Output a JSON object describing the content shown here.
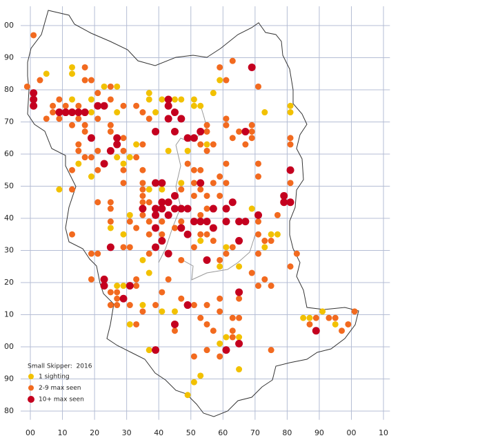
{
  "chart_data": {
    "type": "scatter",
    "title": "Small Skipper:  2016",
    "xlim": [
      -2,
      112
    ],
    "ylim": [
      79,
      206
    ],
    "xticks": [
      {
        "value": 0,
        "label": "00"
      },
      10,
      20,
      30,
      40,
      50,
      60,
      70,
      80,
      90,
      {
        "value": 100,
        "label": "00"
      },
      {
        "value": 110,
        "label": "10"
      }
    ],
    "yticks": [
      80,
      90,
      {
        "value": 100,
        "label": "00"
      },
      {
        "value": 110,
        "label": "10"
      },
      {
        "value": 120,
        "label": "20"
      },
      {
        "value": 130,
        "label": "30"
      },
      {
        "value": 140,
        "label": "40"
      },
      {
        "value": 150,
        "label": "50"
      },
      {
        "value": 160,
        "label": "60"
      },
      {
        "value": 170,
        "label": "70"
      },
      {
        "value": 180,
        "label": "80"
      },
      {
        "value": 190,
        "label": "90"
      },
      {
        "value": 200,
        "label": "00"
      }
    ],
    "grid": true,
    "legend": "lower left",
    "series": [
      {
        "name": "1 sighting",
        "color": "#f2c100",
        "x": [
          5,
          13,
          13,
          13,
          19,
          19,
          23,
          27,
          27,
          27,
          29,
          31,
          33,
          37,
          37,
          39,
          41,
          45,
          51,
          51,
          53,
          47,
          43,
          49,
          41,
          37,
          31,
          25,
          29,
          35,
          37,
          41,
          45,
          47,
          53,
          61,
          59,
          69,
          73,
          77,
          75,
          81,
          81,
          73,
          59,
          57,
          55,
          65,
          65,
          59,
          51,
          53,
          49,
          37,
          31,
          29,
          27,
          15,
          9,
          19,
          85,
          87,
          91,
          95,
          35,
          65,
          61
        ],
        "values": [
          185,
          187,
          185,
          177,
          177,
          173,
          181,
          181,
          173,
          159,
          157,
          159,
          163,
          179,
          177,
          173,
          177,
          177,
          177,
          175,
          175,
          177,
          161,
          161,
          149,
          149,
          141,
          137,
          135,
          127,
          123,
          111,
          111,
          151,
          133,
          131,
          125,
          143,
          131,
          135,
          135,
          175,
          173,
          173,
          183,
          179,
          163,
          125,
          103,
          101,
          89,
          91,
          85,
          99,
          107,
          119,
          119,
          157,
          149,
          153,
          109,
          109,
          111,
          107,
          113,
          93,
          103
        ]
      },
      {
        "name": "2-9 max seen",
        "color": "#f26a1f",
        "x": [
          -1,
          3,
          1,
          5,
          7,
          9,
          9,
          7,
          11,
          15,
          15,
          17,
          17,
          19,
          13,
          17,
          17,
          15,
          17,
          15,
          13,
          19,
          21,
          21,
          21,
          25,
          25,
          29,
          25,
          29,
          29,
          29,
          33,
          35,
          35,
          37,
          33,
          35,
          35,
          35,
          35,
          35,
          35,
          37,
          37,
          25,
          25,
          25,
          13,
          21,
          29,
          31,
          33,
          31,
          37,
          37,
          41,
          41,
          45,
          47,
          47,
          49,
          51,
          51,
          51,
          53,
          53,
          53,
          55,
          55,
          57,
          55,
          53,
          55,
          55,
          57,
          59,
          59,
          61,
          61,
          63,
          65,
          67,
          69,
          71,
          69,
          61,
          61,
          61,
          59,
          63,
          69,
          71,
          71,
          71,
          71,
          73,
          75,
          77,
          81,
          81,
          81,
          81,
          71,
          73,
          71,
          75,
          57,
          55,
          53,
          51,
          47,
          59,
          61,
          63,
          69,
          65,
          63,
          59,
          59,
          55,
          53,
          51,
          47,
          45,
          55,
          57,
          63,
          65,
          59,
          51,
          55,
          63,
          75,
          89,
          93,
          95,
          97,
          99,
          101,
          87,
          83,
          33,
          31,
          27,
          27,
          25,
          25,
          27,
          33,
          35,
          39,
          41,
          43,
          33,
          19,
          19,
          25,
          21,
          13,
          21,
          29
        ],
        "values": [
          181,
          183,
          197,
          171,
          173,
          177,
          171,
          175,
          175,
          171,
          175,
          187,
          183,
          183,
          169,
          169,
          167,
          163,
          159,
          161,
          155,
          159,
          155,
          171,
          179,
          181,
          177,
          175,
          167,
          165,
          161,
          155,
          175,
          173,
          163,
          171,
          159,
          155,
          151,
          149,
          147,
          145,
          141,
          145,
          139,
          145,
          143,
          139,
          135,
          129,
          131,
          131,
          137,
          139,
          135,
          129,
          139,
          135,
          137,
          139,
          149,
          157,
          155,
          151,
          147,
          155,
          149,
          141,
          143,
          147,
          151,
          161,
          163,
          169,
          167,
          163,
          153,
          147,
          151,
          157,
          165,
          167,
          163,
          169,
          181,
          167,
          171,
          169,
          183,
          187,
          189,
          165,
          157,
          153,
          139,
          135,
          133,
          133,
          141,
          163,
          165,
          151,
          125,
          129,
          121,
          119,
          119,
          133,
          135,
          135,
          131,
          127,
          127,
          129,
          131,
          123,
          115,
          109,
          111,
          115,
          113,
          109,
          113,
          115,
          105,
          107,
          105,
          105,
          109,
          97,
          97,
          99,
          103,
          99,
          109,
          109,
          109,
          105,
          107,
          111,
          107,
          129,
          107,
          113,
          113,
          117,
          117,
          113,
          115,
          119,
          111,
          113,
          117,
          121,
          121,
          129,
          121,
          169,
          161,
          149,
          145,
          151
        ]
      },
      {
        "name": "10+ max seen",
        "color": "#c4001f",
        "x": [
          1,
          1,
          1,
          9,
          11,
          13,
          15,
          17,
          21,
          23,
          19,
          27,
          23,
          25,
          27,
          43,
          43,
          43,
          45,
          47,
          45,
          51,
          49,
          53,
          39,
          39,
          41,
          39,
          39,
          39,
          41,
          41,
          43,
          45,
          43,
          47,
          49,
          45,
          47,
          41,
          43,
          39,
          35,
          49,
          51,
          53,
          55,
          53,
          57,
          57,
          61,
          63,
          65,
          61,
          67,
          65,
          79,
          79,
          81,
          81,
          69,
          67,
          71,
          25,
          31,
          23,
          23,
          29,
          49,
          45,
          65,
          89,
          39,
          61,
          65,
          55
        ],
        "values": [
          179,
          177,
          175,
          173,
          173,
          173,
          173,
          173,
          175,
          175,
          165,
          165,
          157,
          161,
          163,
          177,
          175,
          171,
          173,
          171,
          167,
          165,
          165,
          167,
          167,
          151,
          151,
          143,
          141,
          137,
          143,
          145,
          145,
          143,
          141,
          143,
          143,
          147,
          137,
          133,
          129,
          131,
          143,
          135,
          139,
          139,
          139,
          151,
          143,
          137,
          143,
          145,
          139,
          139,
          139,
          133,
          147,
          145,
          145,
          155,
          187,
          167,
          141,
          131,
          119,
          121,
          119,
          115,
          113,
          107,
          117,
          105,
          99,
          99,
          101,
          127
        ]
      }
    ]
  }
}
